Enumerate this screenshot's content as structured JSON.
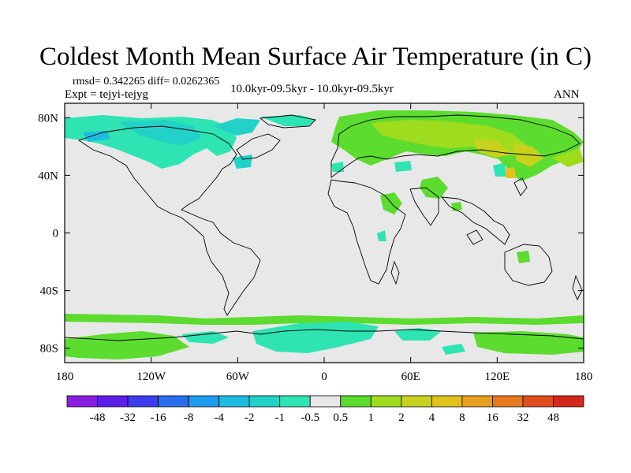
{
  "title": "Coldest Month Mean Surface Air Temperature (in C)",
  "stats": "rmsd= 0.342265 diff= 0.0262365",
  "expt": "Expt = tejyi-tejyg",
  "period": "10.0kyr-09.5kyr - 10.0kyr-09.5kyr",
  "season": "ANN",
  "lat_ticks": [
    "80N",
    "40N",
    "0",
    "40S",
    "80S"
  ],
  "lat_values": [
    80,
    40,
    0,
    -40,
    -80
  ],
  "lon_ticks": [
    "180",
    "120W",
    "60W",
    "0",
    "60E",
    "120E",
    "180"
  ],
  "lon_values": [
    -180,
    -120,
    -60,
    0,
    60,
    120,
    180
  ],
  "lat_range": [
    -90,
    90
  ],
  "lon_range": [
    -180,
    180
  ],
  "colorbar": {
    "labels": [
      "-48",
      "-32",
      "-16",
      "-8",
      "-4",
      "-2",
      "-1",
      "-0.5",
      "0.5",
      "1",
      "2",
      "4",
      "8",
      "16",
      "32",
      "48"
    ],
    "colors": [
      "#8a1ee0",
      "#5c1ee8",
      "#3c3cf0",
      "#2a6ef0",
      "#1e9cf0",
      "#1ebce0",
      "#22d2c8",
      "#2ee4b2",
      "#e8e8e8",
      "#5cdc2e",
      "#a0dc1e",
      "#c8d21e",
      "#e0c21e",
      "#e8a01e",
      "#e8781e",
      "#e04e1e",
      "#d2281e"
    ]
  },
  "colors": {
    "background": "#e8e8e8",
    "land_outline": "#000000"
  }
}
